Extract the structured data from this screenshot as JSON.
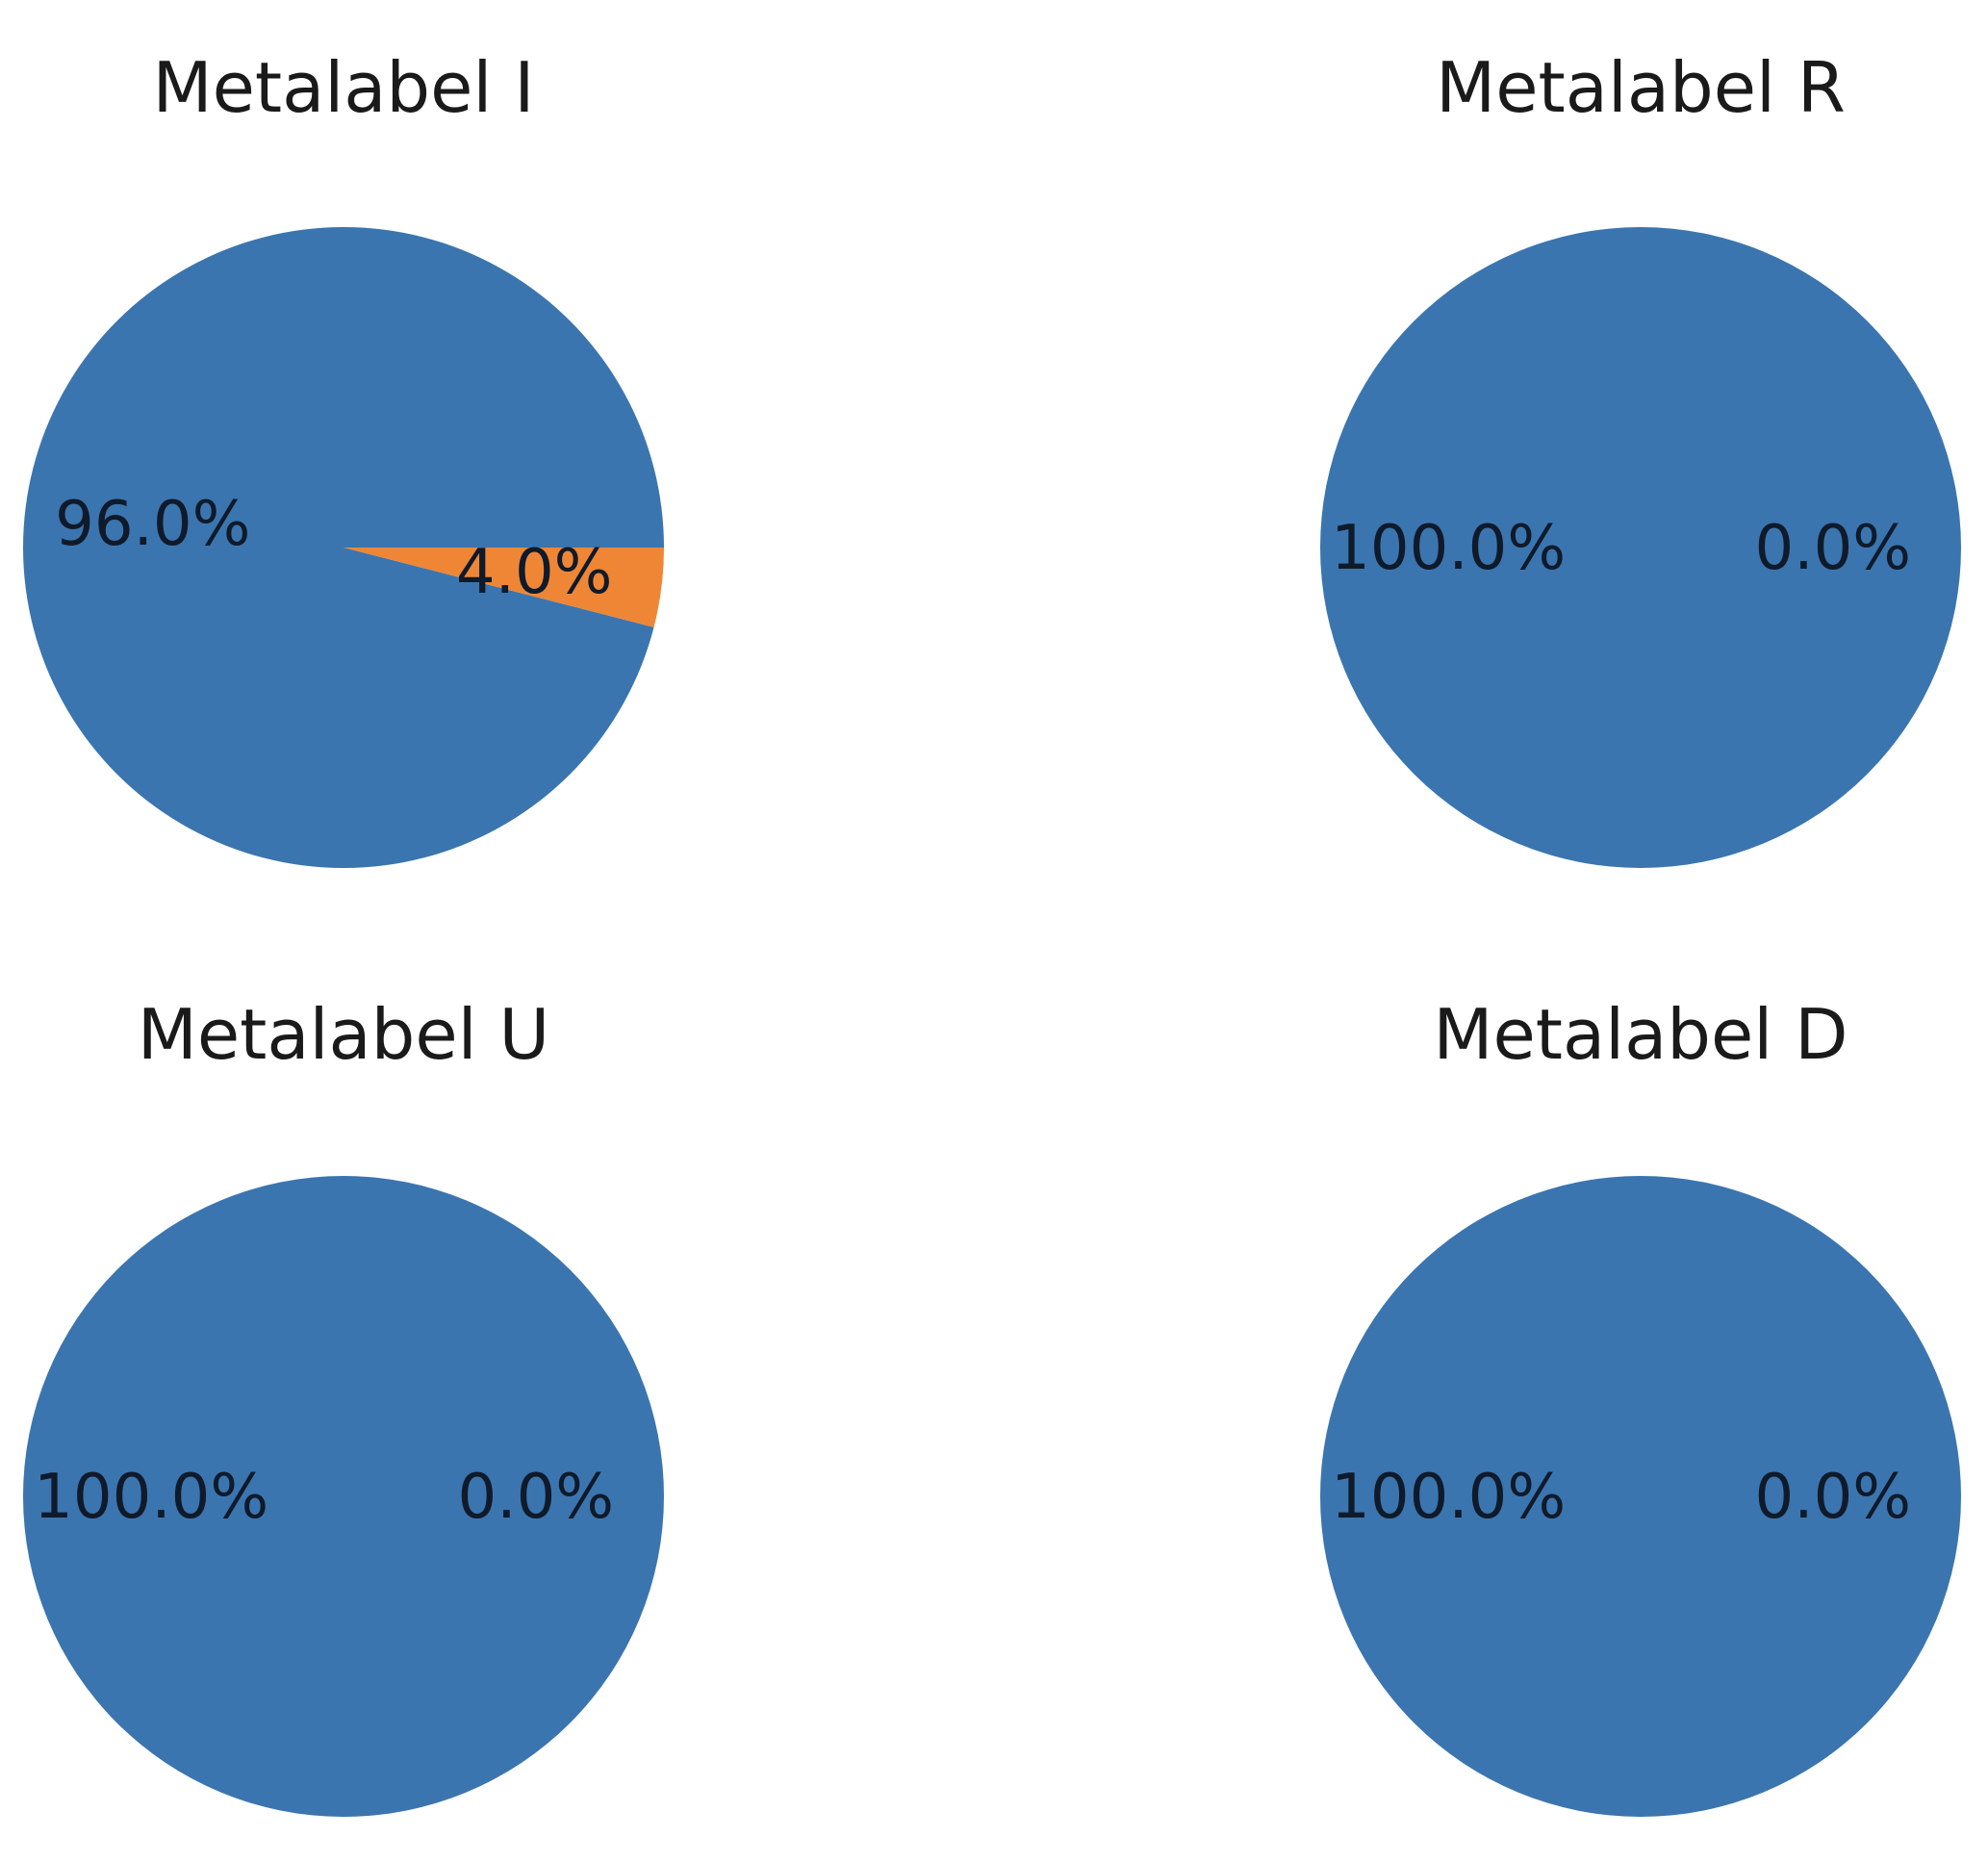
{
  "chart_data": [
    {
      "type": "pie",
      "title": "Metalabel I",
      "values": [
        96.0,
        4.0
      ],
      "labels": [
        "96.0%",
        "4.0%"
      ],
      "colors": [
        "#3b75af",
        "#ef8636"
      ]
    },
    {
      "type": "pie",
      "title": "Metalabel R",
      "values": [
        100.0,
        0.0
      ],
      "labels": [
        "100.0%",
        "0.0%"
      ],
      "colors": [
        "#3b75af",
        "#ef8636"
      ]
    },
    {
      "type": "pie",
      "title": "Metalabel U",
      "values": [
        100.0,
        0.0
      ],
      "labels": [
        "100.0%",
        "0.0%"
      ],
      "colors": [
        "#3b75af",
        "#ef8636"
      ]
    },
    {
      "type": "pie",
      "title": "Metalabel D",
      "values": [
        100.0,
        0.0
      ],
      "labels": [
        "100.0%",
        "0.0%"
      ],
      "colors": [
        "#3b75af",
        "#ef8636"
      ]
    }
  ]
}
